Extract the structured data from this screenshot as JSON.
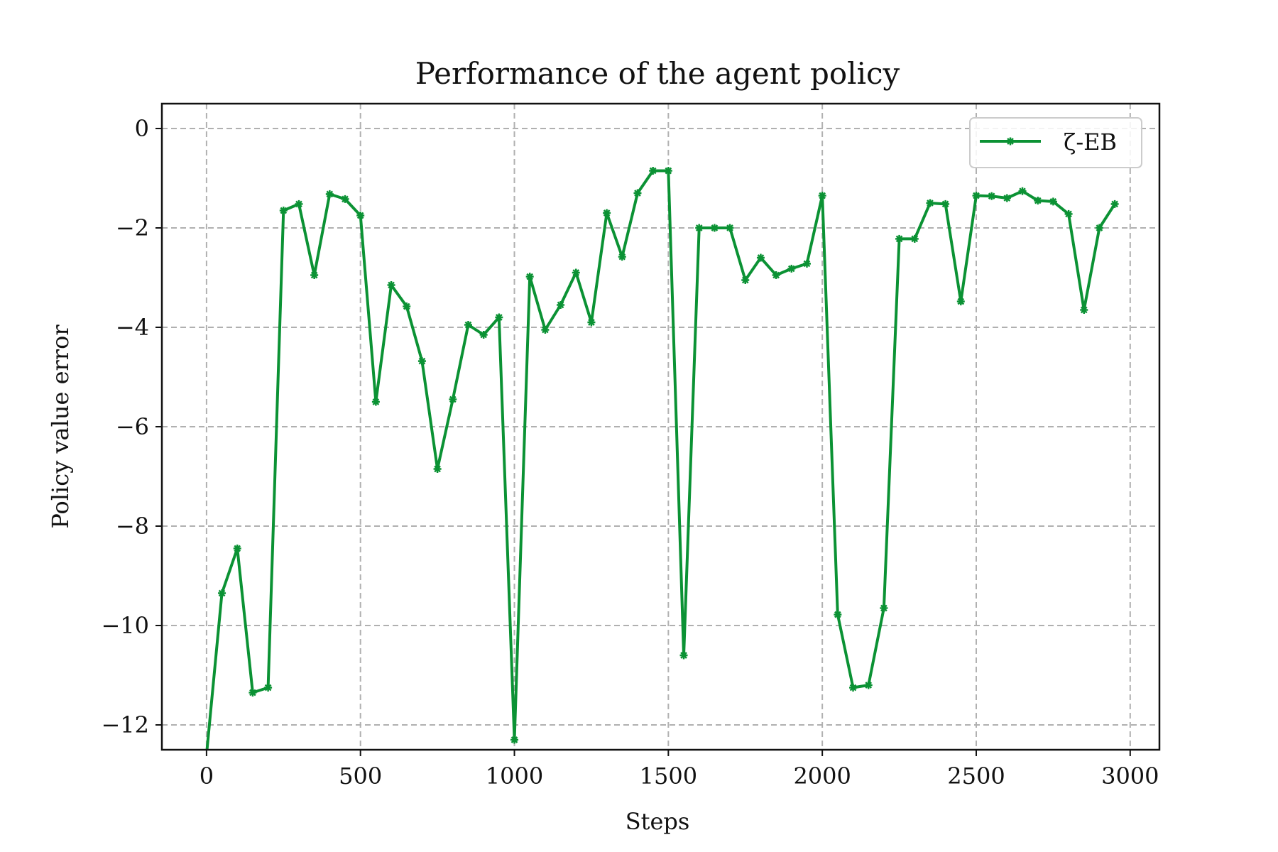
{
  "chart_data": {
    "type": "line",
    "title": "Performance of the agent policy",
    "xlabel": "Steps",
    "ylabel": "Policy value error",
    "xlim": [
      -145,
      3095
    ],
    "ylim": [
      -12.5,
      0.5
    ],
    "xticks": [
      0,
      500,
      1000,
      1500,
      2000,
      2500,
      3000
    ],
    "yticks": [
      0,
      -2,
      -4,
      -6,
      -8,
      -10,
      -12
    ],
    "xtick_labels": [
      "0",
      "500",
      "1000",
      "1500",
      "2000",
      "2500",
      "3000"
    ],
    "ytick_labels": [
      "0",
      "−2",
      "−4",
      "−6",
      "−8",
      "−10",
      "−12"
    ],
    "grid": true,
    "legend_position": "top-right",
    "series": [
      {
        "name": "ζ-EB",
        "color": "#0b9234",
        "marker": "x-star",
        "x": [
          0,
          50,
          100,
          150,
          200,
          250,
          300,
          350,
          400,
          450,
          500,
          550,
          600,
          650,
          700,
          750,
          800,
          850,
          900,
          950,
          1000,
          1050,
          1100,
          1150,
          1200,
          1250,
          1300,
          1350,
          1400,
          1450,
          1500,
          1550,
          1600,
          1650,
          1700,
          1750,
          1800,
          1850,
          1900,
          1950,
          2000,
          2050,
          2100,
          2150,
          2200,
          2250,
          2300,
          2350,
          2400,
          2450,
          2500,
          2550,
          2600,
          2650,
          2700,
          2750,
          2800,
          2850,
          2900,
          2950
        ],
        "y": [
          -12.6,
          -9.35,
          -8.45,
          -11.35,
          -11.25,
          -1.65,
          -1.52,
          -2.95,
          -1.32,
          -1.42,
          -1.75,
          -5.5,
          -3.15,
          -3.58,
          -4.68,
          -6.85,
          -5.45,
          -3.95,
          -4.15,
          -3.8,
          -12.3,
          -2.98,
          -4.05,
          -3.55,
          -2.9,
          -3.9,
          -1.7,
          -2.58,
          -1.3,
          -0.85,
          -0.85,
          -10.6,
          -2.0,
          -2.0,
          -2.0,
          -3.05,
          -2.6,
          -2.95,
          -2.82,
          -2.72,
          -1.35,
          -9.78,
          -11.25,
          -11.2,
          -9.65,
          -2.22,
          -2.22,
          -1.5,
          -1.52,
          -3.48,
          -1.35,
          -1.36,
          -1.4,
          -1.26,
          -1.45,
          -1.47,
          -1.72,
          -3.65,
          -2.0,
          -1.52
        ]
      }
    ]
  }
}
